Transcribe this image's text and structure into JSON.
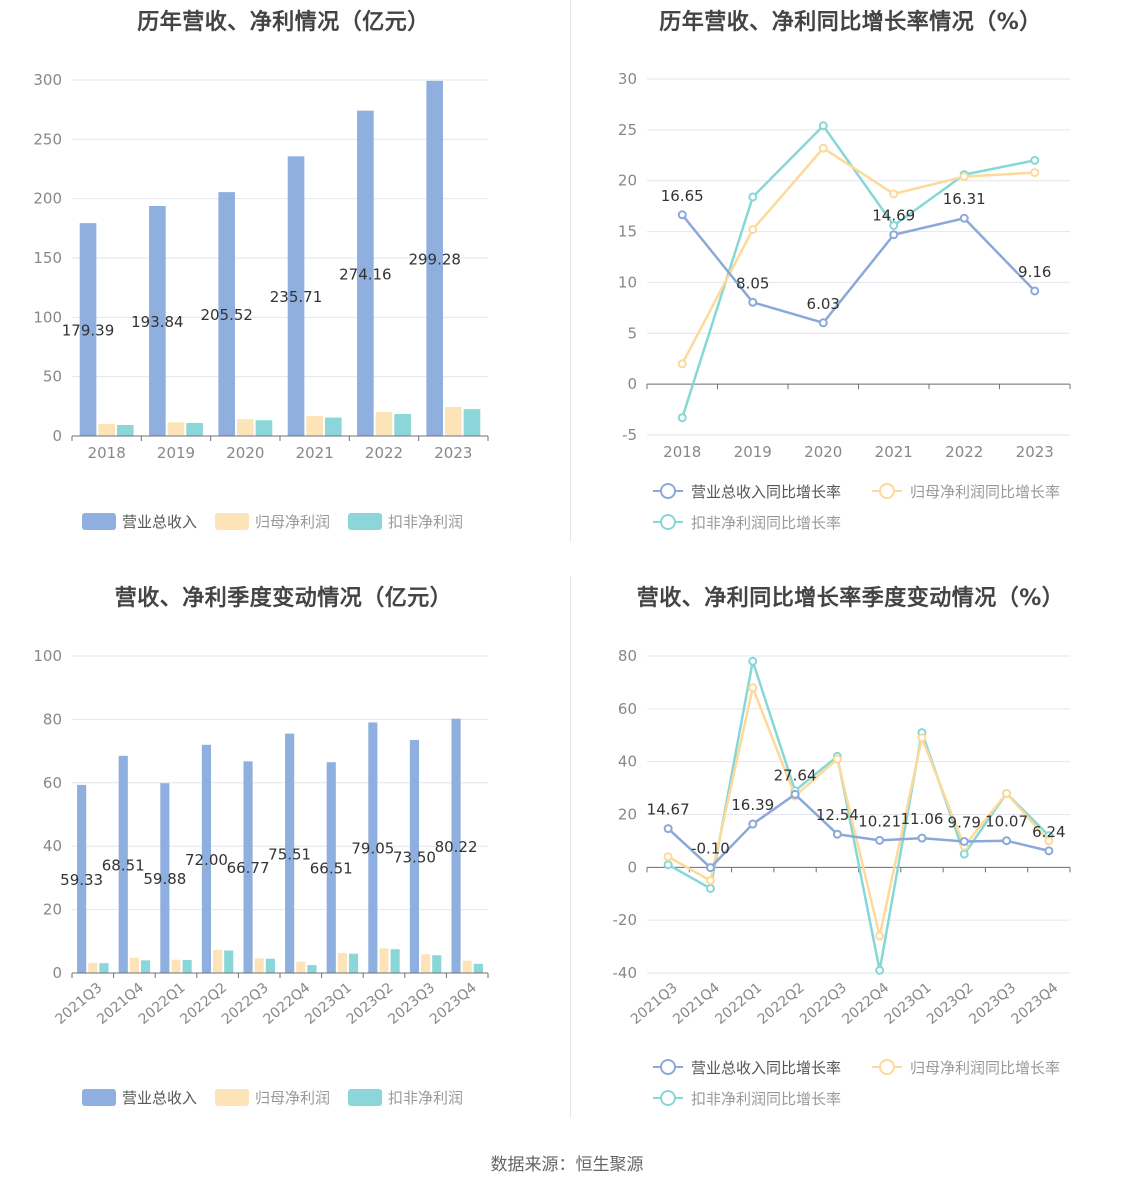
{
  "source": "数据来源：恒生聚源",
  "colors": {
    "revenue": "#8fb0de",
    "parent": "#fde4b8",
    "deducted": "#8ad6d8",
    "revenue_line": "#8ba9d8",
    "parent_line": "#fdd99a",
    "deducted_line": "#86d8d6"
  },
  "legend_labels": {
    "bar": [
      "营业总收入",
      "归母净利润",
      "扣非净利润"
    ],
    "line": [
      "营业总收入同比增长率",
      "归母净利润同比增长率",
      "扣非净利润同比增长率"
    ]
  },
  "chart_data": [
    {
      "id": "annual-amount",
      "type": "bar",
      "title": "历年营收、净利情况（亿元）",
      "categories": [
        "2018",
        "2019",
        "2020",
        "2021",
        "2022",
        "2023"
      ],
      "ylim": [
        0,
        300
      ],
      "yticks": [
        0,
        50,
        100,
        150,
        200,
        250,
        300
      ],
      "series": [
        {
          "name": "营业总收入",
          "values": [
            179.39,
            193.84,
            205.52,
            235.71,
            274.16,
            299.28
          ],
          "labels": [
            "179.39",
            "193.84",
            "205.52",
            "235.71",
            "274.16",
            "299.28"
          ]
        },
        {
          "name": "归母净利润",
          "values": [
            10.2,
            11.5,
            14.2,
            16.8,
            20.2,
            24.4
          ]
        },
        {
          "name": "扣非净利润",
          "values": [
            9.3,
            11.0,
            13.3,
            15.5,
            18.5,
            22.6
          ]
        }
      ],
      "legend": "bottom",
      "grid": true
    },
    {
      "id": "annual-growth",
      "type": "line",
      "title": "历年营收、净利同比增长率情况（%）",
      "categories": [
        "2018",
        "2019",
        "2020",
        "2021",
        "2022",
        "2023"
      ],
      "ylim": [
        -5,
        30
      ],
      "yticks": [
        -5,
        0,
        5,
        10,
        15,
        20,
        25,
        30
      ],
      "series": [
        {
          "name": "营业总收入同比增长率",
          "values": [
            16.65,
            8.05,
            6.03,
            14.69,
            16.31,
            9.16
          ],
          "labels": [
            "16.65",
            "8.05",
            "6.03",
            "14.69",
            "16.31",
            "9.16"
          ]
        },
        {
          "name": "归母净利润同比增长率",
          "values": [
            2.0,
            15.2,
            23.2,
            18.7,
            20.4,
            20.8
          ]
        },
        {
          "name": "扣非净利润同比增长率",
          "values": [
            -3.3,
            18.4,
            25.4,
            15.6,
            20.6,
            22.0
          ]
        }
      ],
      "legend": "bottom",
      "grid": true
    },
    {
      "id": "quarterly-amount",
      "type": "bar",
      "title": "营收、净利季度变动情况（亿元）",
      "categories": [
        "2021Q3",
        "2021Q4",
        "2022Q1",
        "2022Q2",
        "2022Q3",
        "2022Q4",
        "2023Q1",
        "2023Q2",
        "2023Q3",
        "2023Q4"
      ],
      "ylim": [
        0,
        100
      ],
      "yticks": [
        0,
        20,
        40,
        60,
        80,
        100
      ],
      "series": [
        {
          "name": "营业总收入",
          "values": [
            59.33,
            68.51,
            59.88,
            72.0,
            66.77,
            75.51,
            66.51,
            79.05,
            73.5,
            80.22
          ],
          "labels": [
            "59.33",
            "68.51",
            "59.88",
            "72.00",
            "66.77",
            "75.51",
            "66.51",
            "79.05",
            "73.50",
            "80.22"
          ]
        },
        {
          "name": "归母净利润",
          "values": [
            3.2,
            4.8,
            4.2,
            7.3,
            4.6,
            3.6,
            6.3,
            7.8,
            5.9,
            3.9
          ]
        },
        {
          "name": "扣非净利润",
          "values": [
            3.1,
            4.0,
            4.1,
            7.1,
            4.5,
            2.5,
            6.1,
            7.5,
            5.6,
            2.9
          ]
        }
      ],
      "legend": "bottom",
      "grid": true
    },
    {
      "id": "quarterly-growth",
      "type": "line",
      "title": "营收、净利同比增长率季度变动情况（%）",
      "categories": [
        "2021Q3",
        "2021Q4",
        "2022Q1",
        "2022Q2",
        "2022Q3",
        "2022Q4",
        "2023Q1",
        "2023Q2",
        "2023Q3",
        "2023Q4"
      ],
      "ylim": [
        -40,
        80
      ],
      "yticks": [
        -40,
        -20,
        0,
        20,
        40,
        60,
        80
      ],
      "series": [
        {
          "name": "营业总收入同比增长率",
          "values": [
            14.67,
            -0.1,
            16.39,
            27.64,
            12.54,
            10.21,
            11.06,
            9.79,
            10.07,
            6.24
          ],
          "labels": [
            "14.67",
            "-0.10",
            "16.39",
            "27.64",
            "12.54",
            "10.21",
            "11.06",
            "9.79",
            "10.07",
            "6.24"
          ]
        },
        {
          "name": "归母净利润同比增长率",
          "values": [
            4.0,
            -5.0,
            68.0,
            27.0,
            41.0,
            -26.0,
            49.0,
            8.0,
            28.0,
            10.0
          ]
        },
        {
          "name": "扣非净利润同比增长率",
          "values": [
            1.0,
            -8.0,
            78.0,
            29.0,
            42.0,
            -39.0,
            51.0,
            5.0,
            28.0,
            12.0
          ]
        }
      ],
      "legend": "bottom",
      "grid": true
    }
  ]
}
